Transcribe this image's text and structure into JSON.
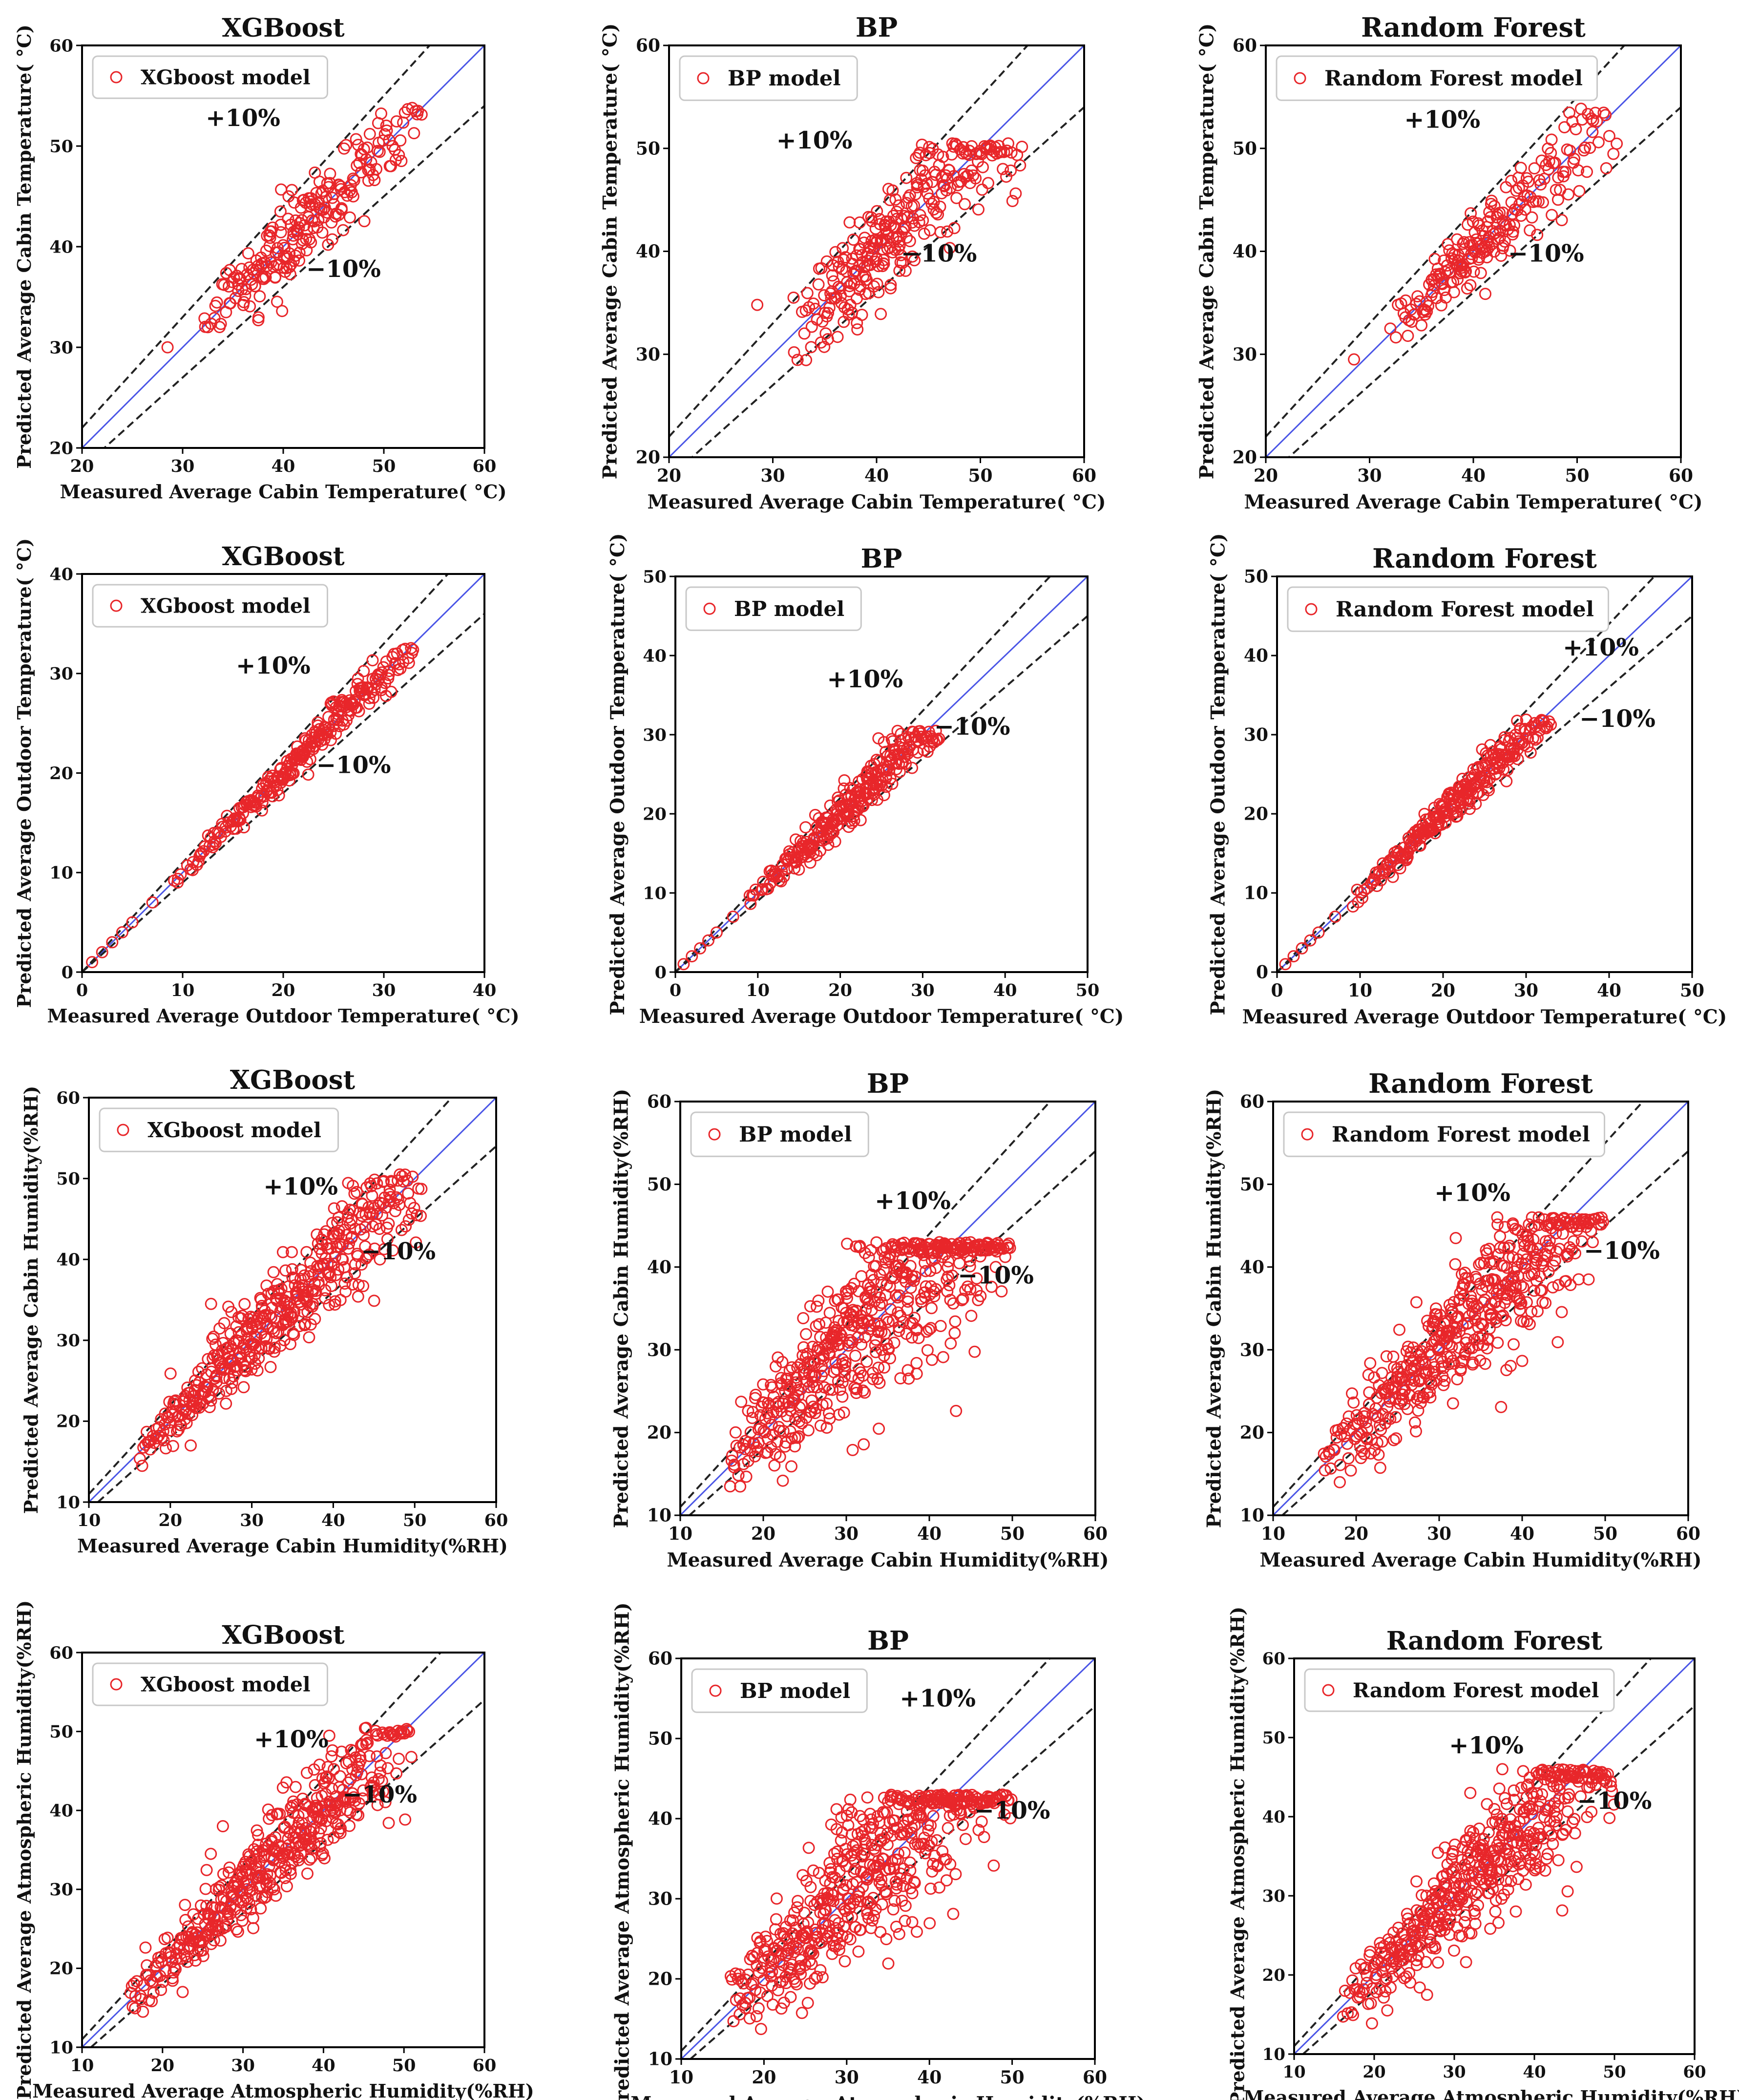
{
  "chart_data": [
    {
      "type": "scatter",
      "title": "XGBoost",
      "legend": "XGboost model",
      "legend_position": "top-left",
      "xlabel": "Measured Average Cabin Temperature( °C)",
      "ylabel": "Predicted Average Cabin Temperature( °C)",
      "xlim": [
        20,
        60
      ],
      "ylim": [
        20,
        60
      ],
      "xticks": [
        20,
        30,
        40,
        50,
        60
      ],
      "yticks": [
        20,
        30,
        40,
        50,
        60
      ],
      "plus_label": "+10%",
      "minus_label": "−10%",
      "plus_at": [
        36,
        52
      ],
      "minus_at": [
        46,
        37
      ],
      "cloud": {
        "xmin": 32,
        "xmax": 54,
        "density": [
          [
            32,
            0.3
          ],
          [
            36,
            1.6
          ],
          [
            41,
            2.6
          ],
          [
            45,
            1.6
          ],
          [
            54,
            0.6
          ]
        ],
        "spread": 0.045,
        "bias": 0.0,
        "ymax": 54
      },
      "outliers": [
        [
          28.5,
          30
        ],
        [
          32.5,
          32
        ]
      ]
    },
    {
      "type": "scatter",
      "title": "BP",
      "legend": "BP model",
      "legend_position": "top-left",
      "xlabel": "Measured Average Cabin Temperature( °C)",
      "ylabel": "Predicted Average Cabin Temperature( °C)",
      "xlim": [
        20,
        60
      ],
      "ylim": [
        20,
        60
      ],
      "xticks": [
        20,
        30,
        40,
        50,
        60
      ],
      "yticks": [
        20,
        30,
        40,
        50,
        60
      ],
      "plus_label": "+10%",
      "minus_label": "−10%",
      "plus_at": [
        34,
        50
      ],
      "minus_at": [
        46,
        39
      ],
      "cloud": {
        "xmin": 32,
        "xmax": 54,
        "density": [
          [
            32,
            0.4
          ],
          [
            36,
            2.0
          ],
          [
            40,
            3.0
          ],
          [
            46,
            1.8
          ],
          [
            54,
            0.8
          ]
        ],
        "spread": 0.07,
        "bias": 0.0,
        "ymax": 50.5
      },
      "outliers": [
        [
          28.5,
          34.8
        ],
        [
          32,
          35.5
        ]
      ]
    },
    {
      "type": "scatter",
      "title": "Random Forest",
      "legend": "Random Forest model",
      "legend_position": "top-left",
      "xlabel": "Measured Average Cabin Temperature( °C)",
      "ylabel": "Predicted Average Cabin Temperature( °C)",
      "xlim": [
        20,
        60
      ],
      "ylim": [
        20,
        60
      ],
      "xticks": [
        20,
        30,
        40,
        50,
        60
      ],
      "yticks": [
        20,
        30,
        40,
        50,
        60
      ],
      "plus_label": "+10%",
      "minus_label": "−10%",
      "plus_at": [
        37,
        52
      ],
      "minus_at": [
        47,
        39
      ],
      "cloud": {
        "xmin": 32,
        "xmax": 54,
        "density": [
          [
            32,
            0.3
          ],
          [
            36,
            1.6
          ],
          [
            40,
            2.6
          ],
          [
            45,
            1.5
          ],
          [
            54,
            0.6
          ]
        ],
        "spread": 0.045,
        "bias": 0.0,
        "ymax": 54
      },
      "outliers": [
        [
          28.5,
          29.5
        ],
        [
          32,
          32.5
        ]
      ]
    },
    {
      "type": "scatter",
      "title": "XGBoost",
      "legend": "XGboost model",
      "legend_position": "top-left",
      "xlabel": "Measured Average Outdoor Temperature( °C)",
      "ylabel": "Predicted Average Outdoor Temperature( °C)",
      "xlim": [
        0,
        40
      ],
      "ylim": [
        0,
        40
      ],
      "xticks": [
        0,
        10,
        20,
        30,
        40
      ],
      "yticks": [
        0,
        10,
        20,
        30,
        40
      ],
      "plus_label": "+10%",
      "minus_label": "−10%",
      "plus_at": [
        19,
        30
      ],
      "minus_at": [
        27,
        20
      ],
      "cloud": {
        "xmin": 9,
        "xmax": 33,
        "density": [
          [
            9,
            0.4
          ],
          [
            15,
            1.4
          ],
          [
            22,
            2.4
          ],
          [
            28,
            2.0
          ],
          [
            33,
            0.6
          ]
        ],
        "spread": 0.035,
        "bias": 0.0,
        "ymax": 33
      },
      "outliers": [
        [
          1,
          1
        ],
        [
          2,
          2
        ],
        [
          3,
          3
        ],
        [
          4,
          4
        ],
        [
          5,
          5
        ],
        [
          7,
          7
        ],
        [
          9.5,
          9
        ]
      ]
    },
    {
      "type": "scatter",
      "title": "BP",
      "legend": "BP model",
      "legend_position": "top-left",
      "xlabel": "Measured Average Outdoor Temperature( °C)",
      "ylabel": "Predicted Average Outdoor Temperature( °C)",
      "xlim": [
        0,
        50
      ],
      "ylim": [
        0,
        50
      ],
      "xticks": [
        0,
        10,
        20,
        30,
        40,
        50
      ],
      "yticks": [
        0,
        10,
        20,
        30,
        40,
        50
      ],
      "plus_label": "+10%",
      "minus_label": "−10%",
      "plus_at": [
        23,
        36
      ],
      "minus_at": [
        36,
        30
      ],
      "cloud": {
        "xmin": 9,
        "xmax": 32,
        "density": [
          [
            9,
            0.4
          ],
          [
            15,
            1.6
          ],
          [
            21,
            2.4
          ],
          [
            27,
            2.0
          ],
          [
            32,
            0.8
          ]
        ],
        "spread": 0.07,
        "bias": 0.0,
        "ymax": 30.5
      },
      "outliers": [
        [
          1,
          1
        ],
        [
          2,
          2
        ],
        [
          3,
          3
        ],
        [
          4,
          4
        ],
        [
          5,
          5
        ],
        [
          7,
          7
        ]
      ]
    },
    {
      "type": "scatter",
      "title": "Random Forest",
      "legend": "Random Forest model",
      "legend_position": "top-left",
      "xlabel": "Measured Average Outdoor Temperature( °C)",
      "ylabel": "Predicted Average Outdoor Temperature( °C)",
      "xlim": [
        0,
        50
      ],
      "ylim": [
        0,
        50
      ],
      "xticks": [
        0,
        10,
        20,
        30,
        40,
        50
      ],
      "yticks": [
        0,
        10,
        20,
        30,
        40,
        50
      ],
      "plus_label": "+10%",
      "minus_label": "−10%",
      "plus_at": [
        39,
        40
      ],
      "minus_at": [
        41,
        31
      ],
      "cloud": {
        "xmin": 9,
        "xmax": 33,
        "density": [
          [
            9,
            0.4
          ],
          [
            15,
            1.6
          ],
          [
            22,
            2.4
          ],
          [
            28,
            1.8
          ],
          [
            33,
            0.6
          ]
        ],
        "spread": 0.05,
        "bias": 0.0,
        "ymax": 32
      },
      "outliers": [
        [
          1,
          1
        ],
        [
          2,
          2
        ],
        [
          3,
          3
        ],
        [
          4,
          4
        ],
        [
          5,
          5
        ],
        [
          7,
          7
        ]
      ]
    },
    {
      "type": "scatter",
      "title": "XGBoost",
      "legend": "XGboost model",
      "legend_position": "top-left",
      "xlabel": "Measured Average Cabin Humidity(%RH)",
      "ylabel": "Predicted Average Cabin Humidity(%RH)",
      "xlim": [
        10,
        60
      ],
      "ylim": [
        10,
        60
      ],
      "xticks": [
        10,
        20,
        30,
        40,
        50,
        60
      ],
      "yticks": [
        10,
        20,
        30,
        40,
        50,
        60
      ],
      "plus_label": "+10%",
      "minus_label": "−10%",
      "plus_at": [
        36,
        48
      ],
      "minus_at": [
        48,
        40
      ],
      "cloud": {
        "xmin": 16,
        "xmax": 51,
        "density": [
          [
            16,
            0.6
          ],
          [
            22,
            1.6
          ],
          [
            30,
            2.6
          ],
          [
            40,
            2.4
          ],
          [
            51,
            0.8
          ]
        ],
        "spread": 0.08,
        "bias": 0.0,
        "ymax": 50.5
      },
      "outliers": [
        [
          22.5,
          17
        ],
        [
          25,
          34.5
        ],
        [
          27.5,
          33.5
        ]
      ]
    },
    {
      "type": "scatter",
      "title": "BP",
      "legend": "BP model",
      "legend_position": "top-left",
      "xlabel": "Measured Average Cabin Humidity(%RH)",
      "ylabel": "Predicted Average Cabin Humidity(%RH)",
      "xlim": [
        10,
        60
      ],
      "ylim": [
        10,
        60
      ],
      "xticks": [
        10,
        20,
        30,
        40,
        50,
        60
      ],
      "yticks": [
        10,
        20,
        30,
        40,
        50,
        60
      ],
      "plus_label": "+10%",
      "minus_label": "−10%",
      "plus_at": [
        38,
        47
      ],
      "minus_at": [
        48,
        38
      ],
      "cloud": {
        "xmin": 16,
        "xmax": 50,
        "density": [
          [
            16,
            0.8
          ],
          [
            22,
            2.2
          ],
          [
            30,
            3.2
          ],
          [
            40,
            2.6
          ],
          [
            50,
            0.8
          ]
        ],
        "spread": 0.16,
        "bias": 0.04,
        "ymax": 43
      },
      "outliers": [
        [
          34,
          26
        ],
        [
          48,
          40
        ]
      ]
    },
    {
      "type": "scatter",
      "title": "Random Forest",
      "legend": "Random Forest model",
      "legend_position": "top-left",
      "xlabel": "Measured Average Cabin Humidity(%RH)",
      "ylabel": "Predicted Average Cabin Humidity(%RH)",
      "xlim": [
        10,
        60
      ],
      "ylim": [
        10,
        60
      ],
      "xticks": [
        10,
        20,
        30,
        40,
        50,
        60
      ],
      "yticks": [
        10,
        20,
        30,
        40,
        50,
        60
      ],
      "plus_label": "+10%",
      "minus_label": "−10%",
      "plus_at": [
        34,
        48
      ],
      "minus_at": [
        52,
        41
      ],
      "cloud": {
        "xmin": 16,
        "xmax": 50,
        "density": [
          [
            16,
            0.6
          ],
          [
            22,
            1.8
          ],
          [
            30,
            2.8
          ],
          [
            40,
            2.6
          ],
          [
            50,
            0.8
          ]
        ],
        "spread": 0.11,
        "bias": 0.0,
        "ymax": 46
      },
      "outliers": [
        [
          37,
          46
        ],
        [
          32,
          43.5
        ],
        [
          48,
          38.5
        ]
      ]
    },
    {
      "type": "scatter",
      "title": "XGBoost",
      "legend": "XGboost model",
      "legend_position": "top-left",
      "xlabel": "Measured Average Atmospheric Humidity(%RH)",
      "ylabel": "Predicted Average Atmospheric Humidity(%RH)",
      "xlim": [
        10,
        60
      ],
      "ylim": [
        10,
        60
      ],
      "xticks": [
        10,
        20,
        30,
        40,
        50,
        60
      ],
      "yticks": [
        10,
        20,
        30,
        40,
        50,
        60
      ],
      "plus_label": "+10%",
      "minus_label": "−10%",
      "plus_at": [
        36,
        48
      ],
      "minus_at": [
        47,
        41
      ],
      "cloud": {
        "xmin": 16,
        "xmax": 51,
        "density": [
          [
            16,
            0.6
          ],
          [
            22,
            1.6
          ],
          [
            30,
            2.6
          ],
          [
            40,
            2.4
          ],
          [
            51,
            0.8
          ]
        ],
        "spread": 0.08,
        "bias": 0.0,
        "ymax": 50.5
      },
      "outliers": [
        [
          22.5,
          17
        ],
        [
          27.5,
          38
        ],
        [
          26,
          34.5
        ],
        [
          38,
          32
        ]
      ]
    },
    {
      "type": "scatter",
      "title": "BP",
      "legend": "BP model",
      "legend_position": "top-left",
      "xlabel": "Measured Average Atmospheric Humidity(%RH)",
      "ylabel": "Predicted Average Atmospheric Humidity(%RH)",
      "xlim": [
        10,
        60
      ],
      "ylim": [
        10,
        60
      ],
      "xticks": [
        10,
        20,
        30,
        40,
        50,
        60
      ],
      "yticks": [
        10,
        20,
        30,
        40,
        50,
        60
      ],
      "plus_label": "+10%",
      "minus_label": "−10%",
      "plus_at": [
        41,
        54
      ],
      "minus_at": [
        50,
        40
      ],
      "cloud": {
        "xmin": 16,
        "xmax": 50,
        "density": [
          [
            16,
            0.8
          ],
          [
            22,
            2.2
          ],
          [
            30,
            3.2
          ],
          [
            40,
            2.6
          ],
          [
            50,
            0.8
          ]
        ],
        "spread": 0.16,
        "bias": 0.04,
        "ymax": 43
      },
      "outliers": [
        [
          36,
          26.5
        ]
      ]
    },
    {
      "type": "scatter",
      "title": "Random Forest",
      "legend": "Random Forest model",
      "legend_position": "top-left",
      "xlabel": "Measured Average Atmospheric Humidity(%RH)",
      "ylabel": "Predicted Average Atmospheric Humidity(%RH)",
      "xlim": [
        10,
        60
      ],
      "ylim": [
        10,
        60
      ],
      "xticks": [
        10,
        20,
        30,
        40,
        50,
        60
      ],
      "yticks": [
        10,
        20,
        30,
        40,
        50,
        60
      ],
      "plus_label": "+10%",
      "minus_label": "−10%",
      "plus_at": [
        34,
        48
      ],
      "minus_at": [
        50,
        41
      ],
      "cloud": {
        "xmin": 16,
        "xmax": 50,
        "density": [
          [
            16,
            0.6
          ],
          [
            22,
            1.8
          ],
          [
            30,
            2.8
          ],
          [
            40,
            2.6
          ],
          [
            50,
            0.8
          ]
        ],
        "spread": 0.11,
        "bias": 0.0,
        "ymax": 46
      },
      "outliers": [
        [
          36,
          46
        ],
        [
          32,
          43
        ],
        [
          43,
          34.5
        ]
      ]
    }
  ],
  "colors": {
    "marker": "#e8262a",
    "diagonal": "#4a55e6",
    "band": "#222222",
    "frame": "#000000"
  }
}
